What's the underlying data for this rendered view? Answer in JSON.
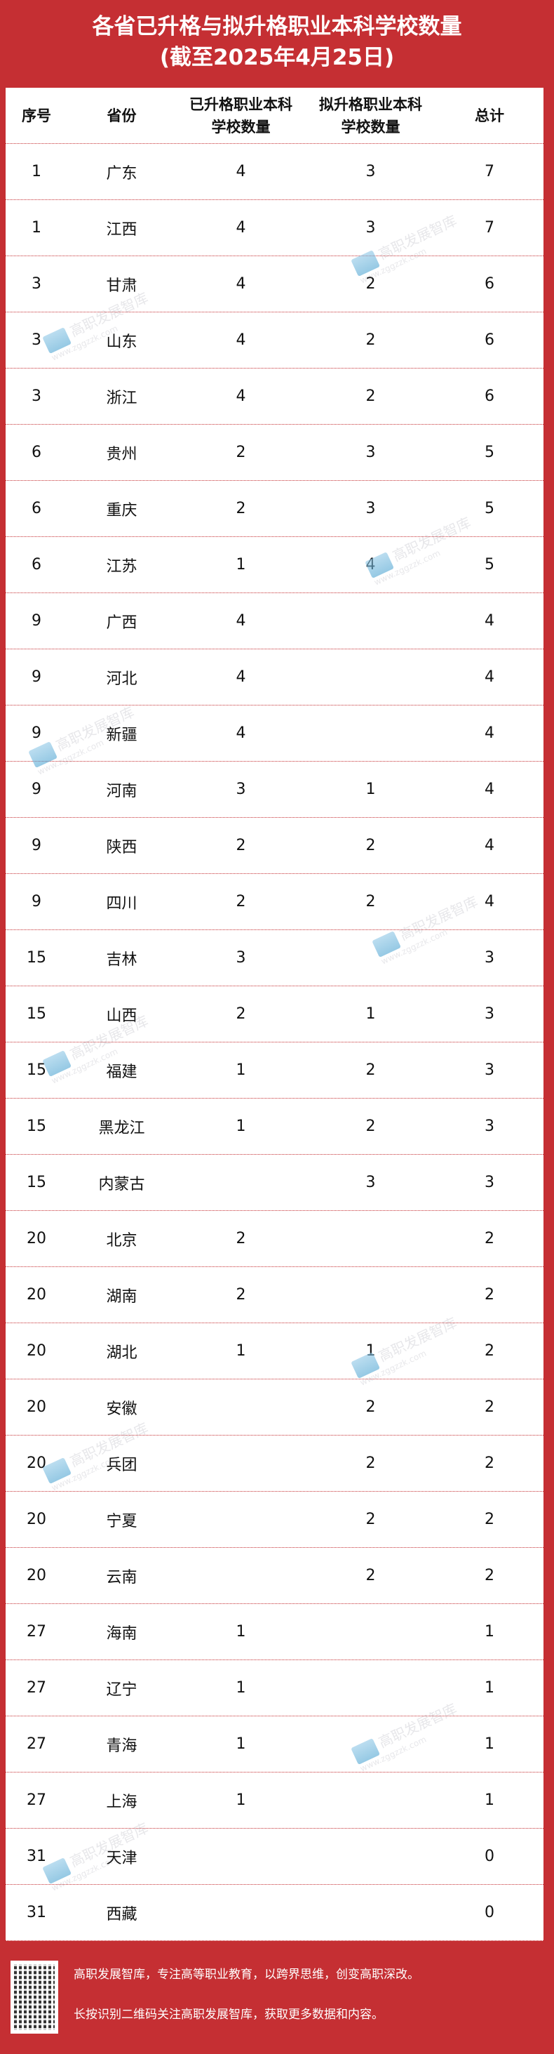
{
  "title": {
    "line1": "各省已升格与拟升格职业本科学校数量",
    "line2": "(截至2025年4月25日)"
  },
  "table": {
    "headers": [
      "序号",
      "省份",
      "已升格职业本科学校数量",
      "拟升格职业本科学校数量",
      "总计"
    ],
    "rows": [
      [
        "1",
        "广东",
        "4",
        "3",
        "7"
      ],
      [
        "1",
        "江西",
        "4",
        "3",
        "7"
      ],
      [
        "3",
        "甘肃",
        "4",
        "2",
        "6"
      ],
      [
        "3",
        "山东",
        "4",
        "2",
        "6"
      ],
      [
        "3",
        "浙江",
        "4",
        "2",
        "6"
      ],
      [
        "6",
        "贵州",
        "2",
        "3",
        "5"
      ],
      [
        "6",
        "重庆",
        "2",
        "3",
        "5"
      ],
      [
        "6",
        "江苏",
        "1",
        "4",
        "5"
      ],
      [
        "9",
        "广西",
        "4",
        "",
        "4"
      ],
      [
        "9",
        "河北",
        "4",
        "",
        "4"
      ],
      [
        "9",
        "新疆",
        "4",
        "",
        "4"
      ],
      [
        "9",
        "河南",
        "3",
        "1",
        "4"
      ],
      [
        "9",
        "陕西",
        "2",
        "2",
        "4"
      ],
      [
        "9",
        "四川",
        "2",
        "2",
        "4"
      ],
      [
        "15",
        "吉林",
        "3",
        "",
        "3"
      ],
      [
        "15",
        "山西",
        "2",
        "1",
        "3"
      ],
      [
        "15",
        "福建",
        "1",
        "2",
        "3"
      ],
      [
        "15",
        "黑龙江",
        "1",
        "2",
        "3"
      ],
      [
        "15",
        "内蒙古",
        "",
        "3",
        "3"
      ],
      [
        "20",
        "北京",
        "2",
        "",
        "2"
      ],
      [
        "20",
        "湖南",
        "2",
        "",
        "2"
      ],
      [
        "20",
        "湖北",
        "1",
        "1",
        "2"
      ],
      [
        "20",
        "安徽",
        "",
        "2",
        "2"
      ],
      [
        "20",
        "兵团",
        "",
        "2",
        "2"
      ],
      [
        "20",
        "宁夏",
        "",
        "2",
        "2"
      ],
      [
        "20",
        "云南",
        "",
        "2",
        "2"
      ],
      [
        "27",
        "海南",
        "1",
        "",
        "1"
      ],
      [
        "27",
        "辽宁",
        "1",
        "",
        "1"
      ],
      [
        "27",
        "青海",
        "1",
        "",
        "1"
      ],
      [
        "27",
        "上海",
        "1",
        "",
        "1"
      ],
      [
        "31",
        "天津",
        "",
        "",
        "0"
      ],
      [
        "31",
        "西藏",
        "",
        "",
        "0"
      ]
    ]
  },
  "watermark": {
    "name": "高职发展智库",
    "url": "www.zggzzk.com"
  },
  "footer": {
    "line1": "高职发展智库，专注高等职业教育，以跨界思维，创变高职深改。",
    "line2": "长按识别二维码关注高职发展智库，获取更多数据和内容。",
    "qr_icon": "qr-code"
  },
  "colors": {
    "brand_red": "#c52f33"
  }
}
